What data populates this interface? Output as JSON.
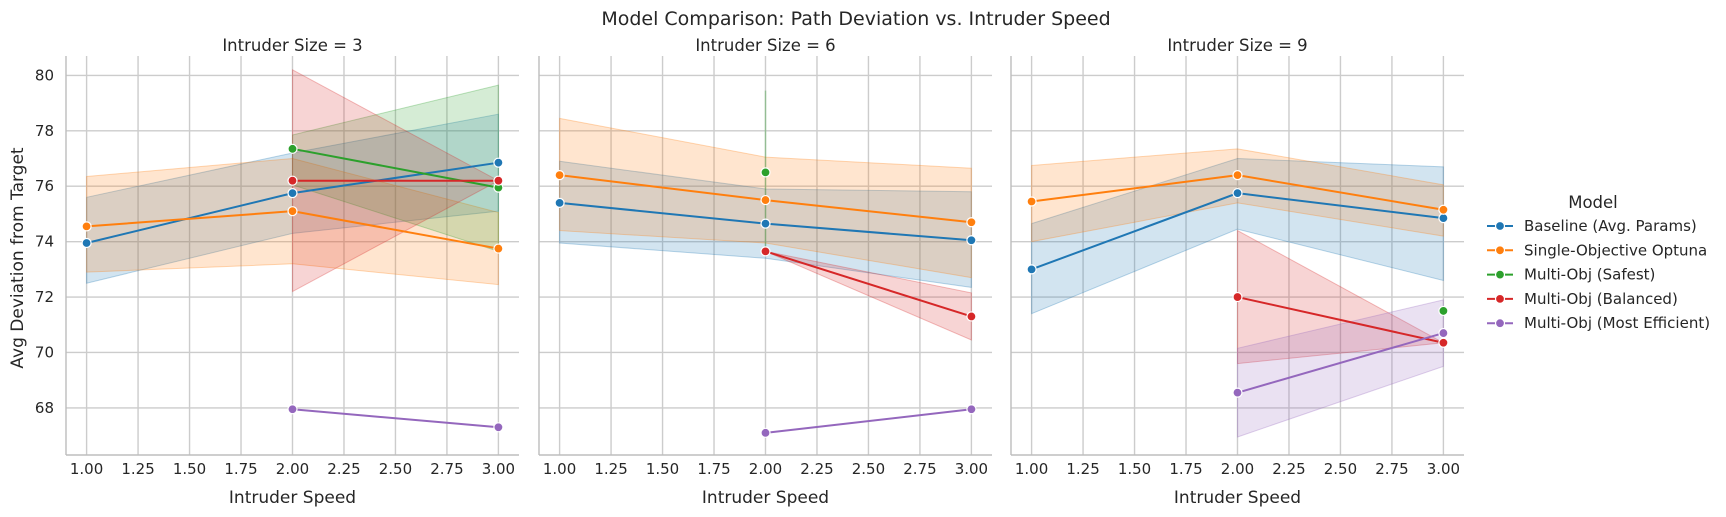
{
  "chart_data": {
    "type": "line",
    "title": "Model Comparison: Path Deviation vs. Intruder Speed",
    "xlabel": "Intruder Speed",
    "ylabel": "Avg Deviation from Target",
    "xlim": [
      0.9,
      3.1
    ],
    "ylim": [
      66.3,
      80.7
    ],
    "xticks": [
      1.0,
      1.25,
      1.5,
      1.75,
      2.0,
      2.25,
      2.5,
      2.75,
      3.0
    ],
    "xtick_labels": [
      "1.00",
      "1.25",
      "1.50",
      "1.75",
      "2.00",
      "2.25",
      "2.50",
      "2.75",
      "3.00"
    ],
    "yticks": [
      68,
      70,
      72,
      74,
      76,
      78,
      80
    ],
    "ytick_labels": [
      "68",
      "70",
      "72",
      "74",
      "76",
      "78",
      "80"
    ],
    "grid": true,
    "legend": {
      "title": "Model",
      "position": "right",
      "entries": [
        "Baseline (Avg. Params)",
        "Single-Objective Optuna",
        "Multi-Obj (Safest)",
        "Multi-Obj (Balanced)",
        "Multi-Obj (Most Efficient)"
      ]
    },
    "colors": {
      "Baseline (Avg. Params)": "#1f77b4",
      "Single-Objective Optuna": "#ff7f0e",
      "Multi-Obj (Safest)": "#2ca02c",
      "Multi-Obj (Balanced)": "#d62728",
      "Multi-Obj (Most Efficient)": "#9467bd"
    },
    "panels": [
      {
        "title": "Intruder Size = 3",
        "series": [
          {
            "name": "Baseline (Avg. Params)",
            "x": [
              1,
              2,
              3
            ],
            "y": [
              73.95,
              75.75,
              76.85
            ],
            "lower": [
              72.5,
              74.3,
              75.1
            ],
            "upper": [
              75.6,
              77.2,
              78.6
            ]
          },
          {
            "name": "Single-Objective Optuna",
            "x": [
              1,
              2,
              3
            ],
            "y": [
              74.55,
              75.1,
              73.75
            ],
            "lower": [
              72.9,
              73.2,
              72.45
            ],
            "upper": [
              76.35,
              77.0,
              75.05
            ]
          },
          {
            "name": "Multi-Obj (Safest)",
            "x": [
              2,
              3
            ],
            "y": [
              77.35,
              75.95
            ],
            "lower": [
              76.05,
              73.65
            ],
            "upper": [
              77.85,
              79.65
            ]
          },
          {
            "name": "Multi-Obj (Balanced)",
            "x": [
              2,
              3
            ],
            "y": [
              76.2,
              76.2
            ],
            "lower": [
              72.2,
              76.2
            ],
            "upper": [
              80.2,
              76.2
            ]
          },
          {
            "name": "Multi-Obj (Most Efficient)",
            "x": [
              2,
              3
            ],
            "y": [
              67.95,
              67.3
            ],
            "lower": [
              67.95,
              67.3
            ],
            "upper": [
              67.95,
              67.3
            ]
          }
        ]
      },
      {
        "title": "Intruder Size = 6",
        "series": [
          {
            "name": "Baseline (Avg. Params)",
            "x": [
              1,
              2,
              3
            ],
            "y": [
              75.4,
              74.65,
              74.05
            ],
            "lower": [
              73.95,
              73.4,
              72.35
            ],
            "upper": [
              76.9,
              75.9,
              75.8
            ]
          },
          {
            "name": "Single-Objective Optuna",
            "x": [
              1,
              2,
              3
            ],
            "y": [
              76.4,
              75.5,
              74.7
            ],
            "lower": [
              74.4,
              73.95,
              72.7
            ],
            "upper": [
              78.45,
              77.05,
              76.65
            ]
          },
          {
            "name": "Multi-Obj (Safest)",
            "x": [
              2
            ],
            "y": [
              76.5
            ],
            "lower": [
              73.55
            ],
            "upper": [
              79.45
            ]
          },
          {
            "name": "Multi-Obj (Balanced)",
            "x": [
              2,
              3
            ],
            "y": [
              73.65,
              71.3
            ],
            "lower": [
              73.65,
              70.45
            ],
            "upper": [
              73.65,
              72.15
            ]
          },
          {
            "name": "Multi-Obj (Most Efficient)",
            "x": [
              2,
              3
            ],
            "y": [
              67.1,
              67.95
            ],
            "lower": [
              67.1,
              67.95
            ],
            "upper": [
              67.1,
              67.95
            ]
          }
        ]
      },
      {
        "title": "Intruder Size = 9",
        "series": [
          {
            "name": "Baseline (Avg. Params)",
            "x": [
              1,
              2,
              3
            ],
            "y": [
              73.0,
              75.75,
              74.85
            ],
            "lower": [
              71.4,
              74.45,
              72.6
            ],
            "upper": [
              74.65,
              77.0,
              76.7
            ]
          },
          {
            "name": "Single-Objective Optuna",
            "x": [
              1,
              2,
              3
            ],
            "y": [
              75.45,
              76.4,
              75.15
            ],
            "lower": [
              74.0,
              75.4,
              74.2
            ],
            "upper": [
              76.75,
              77.35,
              76.05
            ]
          },
          {
            "name": "Multi-Obj (Safest)",
            "x": [
              3
            ],
            "y": [
              71.5
            ],
            "lower": [
              71.5
            ],
            "upper": [
              71.5
            ]
          },
          {
            "name": "Multi-Obj (Balanced)",
            "x": [
              2,
              3
            ],
            "y": [
              72.0,
              70.35
            ],
            "lower": [
              69.6,
              70.35
            ],
            "upper": [
              74.4,
              70.35
            ]
          },
          {
            "name": "Multi-Obj (Most Efficient)",
            "x": [
              2,
              3
            ],
            "y": [
              68.55,
              70.7
            ],
            "lower": [
              66.95,
              69.5
            ],
            "upper": [
              70.15,
              71.9
            ]
          }
        ]
      }
    ]
  }
}
